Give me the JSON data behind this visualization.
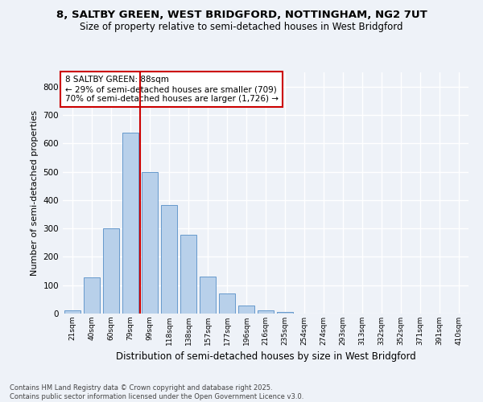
{
  "title1": "8, SALTBY GREEN, WEST BRIDGFORD, NOTTINGHAM, NG2 7UT",
  "title2": "Size of property relative to semi-detached houses in West Bridgford",
  "xlabel": "Distribution of semi-detached houses by size in West Bridgford",
  "ylabel": "Number of semi-detached properties",
  "categories": [
    "21sqm",
    "40sqm",
    "60sqm",
    "79sqm",
    "99sqm",
    "118sqm",
    "138sqm",
    "157sqm",
    "177sqm",
    "196sqm",
    "216sqm",
    "235sqm",
    "254sqm",
    "274sqm",
    "293sqm",
    "313sqm",
    "332sqm",
    "352sqm",
    "371sqm",
    "391sqm",
    "410sqm"
  ],
  "values": [
    10,
    128,
    300,
    638,
    500,
    383,
    278,
    130,
    70,
    28,
    12,
    5,
    0,
    0,
    0,
    0,
    0,
    0,
    0,
    0,
    0
  ],
  "bar_color": "#b8d0ea",
  "bar_edge_color": "#6699cc",
  "vline_x": 3.5,
  "vline_label": "8 SALTBY GREEN: 88sqm",
  "annotation_line1": "← 29% of semi-detached houses are smaller (709)",
  "annotation_line2": "70% of semi-detached houses are larger (1,726) →",
  "box_color": "#cc0000",
  "ylim": [
    0,
    850
  ],
  "yticks": [
    0,
    100,
    200,
    300,
    400,
    500,
    600,
    700,
    800
  ],
  "footer1": "Contains HM Land Registry data © Crown copyright and database right 2025.",
  "footer2": "Contains public sector information licensed under the Open Government Licence v3.0.",
  "bg_color": "#eef2f8",
  "grid_color": "#ffffff",
  "title_fontsize": 9.5,
  "subtitle_fontsize": 8.5
}
